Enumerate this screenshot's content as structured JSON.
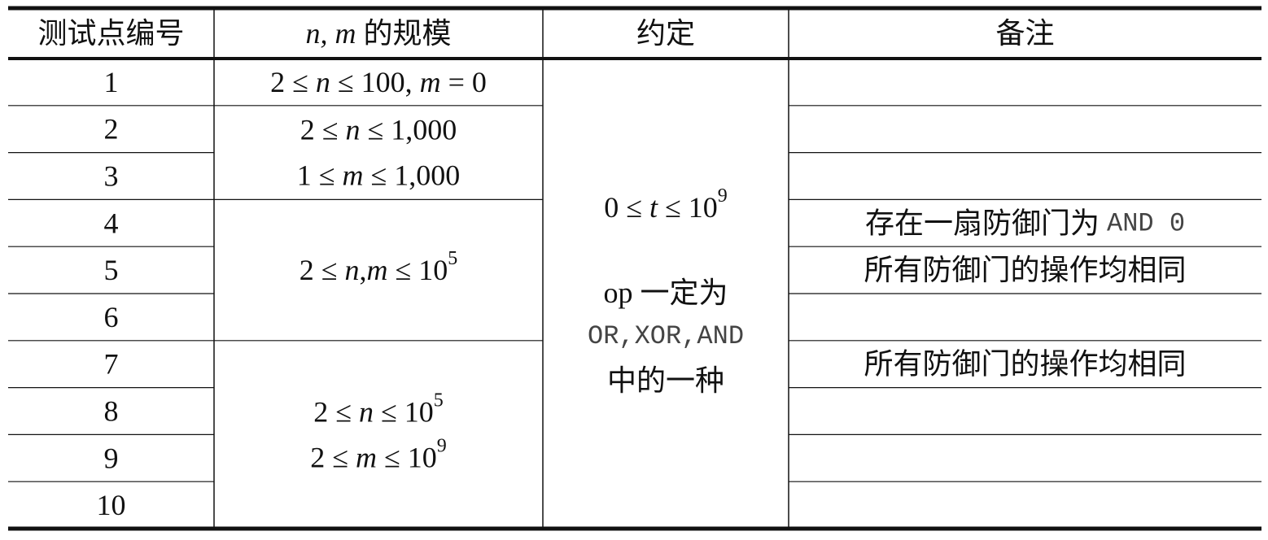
{
  "table": {
    "header": [
      [
        {
          "text": "测试点编号"
        }
      ],
      [
        {
          "text": "n, m",
          "style": "italic"
        },
        {
          "text": " 的规模"
        }
      ],
      [
        {
          "text": "约定"
        }
      ],
      [
        {
          "text": "备注"
        }
      ]
    ],
    "tests": [
      "1",
      "2",
      "3",
      "4",
      "5",
      "6",
      "7",
      "8",
      "9",
      "10"
    ],
    "scale": [
      {
        "lines": [
          [
            {
              "text": "2 ≤ "
            },
            {
              "text": "n",
              "style": "italic"
            },
            {
              "text": " ≤ 100, "
            },
            {
              "text": "m",
              "style": "italic"
            },
            {
              "text": " = 0"
            }
          ]
        ]
      },
      {
        "lines": [
          [
            {
              "text": "2 ≤ "
            },
            {
              "text": "n",
              "style": "italic"
            },
            {
              "text": " ≤ 1,000"
            }
          ],
          [
            {
              "text": "1 ≤ "
            },
            {
              "text": "m",
              "style": "italic"
            },
            {
              "text": " ≤ 1,000"
            }
          ]
        ]
      },
      {
        "lines": [
          [
            {
              "text": "2 ≤ "
            },
            {
              "text": "n",
              "style": "italic"
            },
            {
              "text": ","
            },
            {
              "text": "m",
              "style": "italic"
            },
            {
              "text": " ≤ 10"
            },
            {
              "text": "5",
              "style": "sup"
            }
          ]
        ]
      },
      {
        "lines": [
          [
            {
              "text": "2 ≤ "
            },
            {
              "text": "n",
              "style": "italic"
            },
            {
              "text": " ≤ 10"
            },
            {
              "text": "5",
              "style": "sup"
            }
          ],
          [
            {
              "text": "2 ≤ "
            },
            {
              "text": "m",
              "style": "italic"
            },
            {
              "text": " ≤ 10"
            },
            {
              "text": "9",
              "style": "sup"
            }
          ]
        ]
      }
    ],
    "convention": {
      "lines": [
        [
          {
            "text": "0 ≤ "
          },
          {
            "text": "t",
            "style": "italic"
          },
          {
            "text": " ≤ 10"
          },
          {
            "text": "9",
            "style": "sup"
          }
        ],
        [
          {
            "text": "op 一定为"
          }
        ],
        [
          {
            "text": "OR,XOR,AND",
            "style": "mono"
          }
        ],
        [
          {
            "text": "中的一种"
          }
        ]
      ]
    },
    "notes": [
      null,
      null,
      null,
      [
        {
          "text": "存在一扇防御门为 "
        },
        {
          "text": "AND 0",
          "style": "mono"
        }
      ],
      [
        {
          "text": "所有防御门的操作均相同"
        }
      ],
      null,
      [
        {
          "text": "所有防御门的操作均相同"
        }
      ],
      null,
      null,
      null
    ]
  }
}
